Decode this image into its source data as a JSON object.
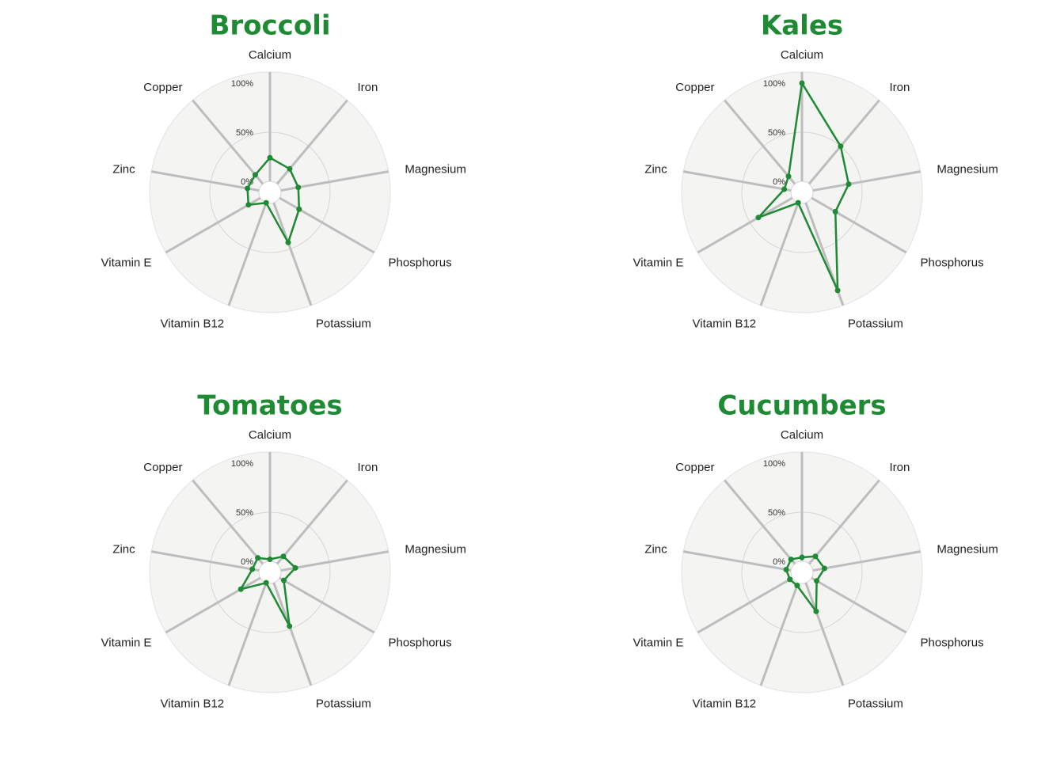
{
  "chart_data": [
    {
      "type": "radar",
      "title": "Broccoli",
      "axes": [
        "Calcium",
        "Iron",
        "Magnesium",
        "Phosphorus",
        "Potassium",
        "Vitamin B12",
        "Vitamin E",
        "Zinc",
        "Copper"
      ],
      "ticks": [
        "100%",
        "50%",
        "0%"
      ],
      "rlim": [
        0,
        100
      ],
      "values": [
        24,
        20,
        18,
        23,
        43,
        0,
        14,
        12,
        12
      ]
    },
    {
      "type": "radar",
      "title": "Kales",
      "axes": [
        "Calcium",
        "Iron",
        "Magnesium",
        "Phosphorus",
        "Potassium",
        "Vitamin B12",
        "Vitamin E",
        "Zinc",
        "Copper"
      ],
      "ticks": [
        "100%",
        "50%",
        "0%"
      ],
      "rlim": [
        0,
        100
      ],
      "values": [
        100,
        50,
        37,
        28,
        95,
        0,
        40,
        7,
        10
      ]
    },
    {
      "type": "radar",
      "title": "Tomatoes",
      "axes": [
        "Calcium",
        "Iron",
        "Magnesium",
        "Phosphorus",
        "Potassium",
        "Vitamin B12",
        "Vitamin E",
        "Zinc",
        "Copper"
      ],
      "ticks": [
        "100%",
        "50%",
        "0%"
      ],
      "rlim": [
        0,
        100
      ],
      "values": [
        2,
        10,
        15,
        5,
        47,
        0,
        23,
        7,
        8
      ]
    },
    {
      "type": "radar",
      "title": "Cucumbers",
      "axes": [
        "Calcium",
        "Iron",
        "Magnesium",
        "Phosphorus",
        "Potassium",
        "Vitamin B12",
        "Vitamin E",
        "Zinc",
        "Copper"
      ],
      "ticks": [
        "100%",
        "50%",
        "0%"
      ],
      "rlim": [
        0,
        100
      ],
      "values": [
        4,
        10,
        12,
        6,
        31,
        3,
        3,
        5,
        6
      ]
    }
  ],
  "colors": {
    "series": "#1e8a34",
    "title": "#1e8a34",
    "disc": "#f4f4f3",
    "spoke": "#bdbdbd",
    "grid": "#d6d6d6"
  }
}
